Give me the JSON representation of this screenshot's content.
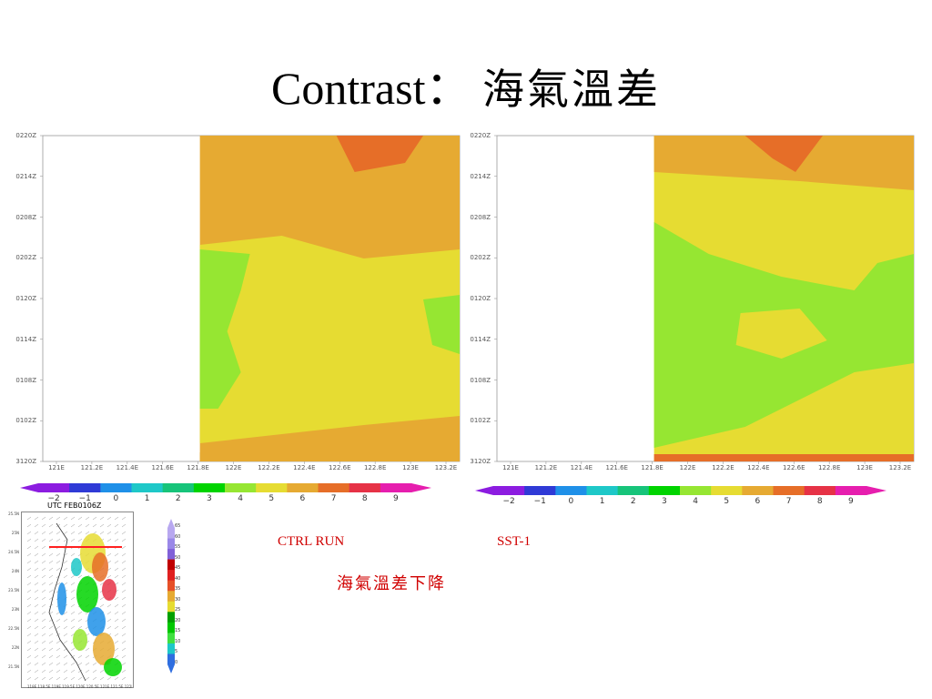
{
  "slide": {
    "title_en": "Contrast",
    "title_sep": "：",
    "title_zh": "海氣溫差",
    "label_ctrl": "CTRL RUN",
    "label_sst": "SST-1",
    "label_decrease": "海氣溫差下降"
  },
  "colors": {
    "levels": [
      "#8c1ce0",
      "#2f3ad6",
      "#1f90e8",
      "#1ec8c8",
      "#17c47a",
      "#00d400",
      "#96e632",
      "#e6dc32",
      "#e6aa32",
      "#e66e28",
      "#e63246",
      "#e61eae"
    ],
    "axis": "#555555",
    "redline": "#ff2020"
  },
  "chart_data": [
    {
      "type": "heatmap",
      "name": "CTRL RUN",
      "x_ticks": [
        "121E",
        "121.2E",
        "121.4E",
        "121.6E",
        "121.8E",
        "122E",
        "122.2E",
        "122.4E",
        "122.6E",
        "122.8E",
        "123E",
        "123.2E"
      ],
      "y_ticks": [
        "0220Z",
        "0214Z",
        "0208Z",
        "0202Z",
        "0120Z",
        "0114Z",
        "0108Z",
        "0102Z",
        "3120Z"
      ],
      "xlim": [
        "121E",
        "123.2E"
      ],
      "data_start_x": "121.8E",
      "regions": [
        {
          "value": 7,
          "desc": "top band"
        },
        {
          "value": 6,
          "desc": "upper"
        },
        {
          "value": 5,
          "desc": "middle-lower"
        },
        {
          "value": 4,
          "desc": "coastal west / east patch"
        },
        {
          "value": 6,
          "desc": "bottom strip"
        }
      ]
    },
    {
      "type": "heatmap",
      "name": "SST-1",
      "x_ticks": [
        "121E",
        "121.2E",
        "121.4E",
        "121.6E",
        "121.8E",
        "122E",
        "122.2E",
        "122.4E",
        "122.6E",
        "122.8E",
        "123E",
        "123.2E"
      ],
      "y_ticks": [
        "0220Z",
        "0214Z",
        "0208Z",
        "0202Z",
        "0120Z",
        "0114Z",
        "0108Z",
        "0102Z",
        "3120Z"
      ],
      "xlim": [
        "121E",
        "123.2E"
      ],
      "data_start_x": "121.8E",
      "regions": [
        {
          "value": 7,
          "desc": "top band"
        },
        {
          "value": 6,
          "desc": "upper"
        },
        {
          "value": 5,
          "desc": "middle"
        },
        {
          "value": 4,
          "desc": "large west / lower"
        },
        {
          "value": 7,
          "desc": "bottom strip"
        }
      ]
    }
  ],
  "colorbar": {
    "ticks": [
      "−2",
      "−1",
      "0",
      "1",
      "2",
      "3",
      "4",
      "5",
      "6",
      "7",
      "8",
      "9"
    ]
  },
  "thumbnail": {
    "caption": "UTC FEB0106Z",
    "y_ticks": [
      "25.5N",
      "25N",
      "24.5N",
      "24N",
      "23.5N",
      "23N",
      "22.5N",
      "22N",
      "21.5N"
    ],
    "x_ticks": "118E 118.5E 119E 119.5E 120E 120.5E 121E 121.5E 122E 122.5E 123E 123.5E 124E 124.5E",
    "scale_ticks": [
      "65",
      "60",
      "55",
      "50",
      "45",
      "40",
      "35",
      "30",
      "25",
      "20",
      "15",
      "10",
      "5",
      "0"
    ]
  }
}
